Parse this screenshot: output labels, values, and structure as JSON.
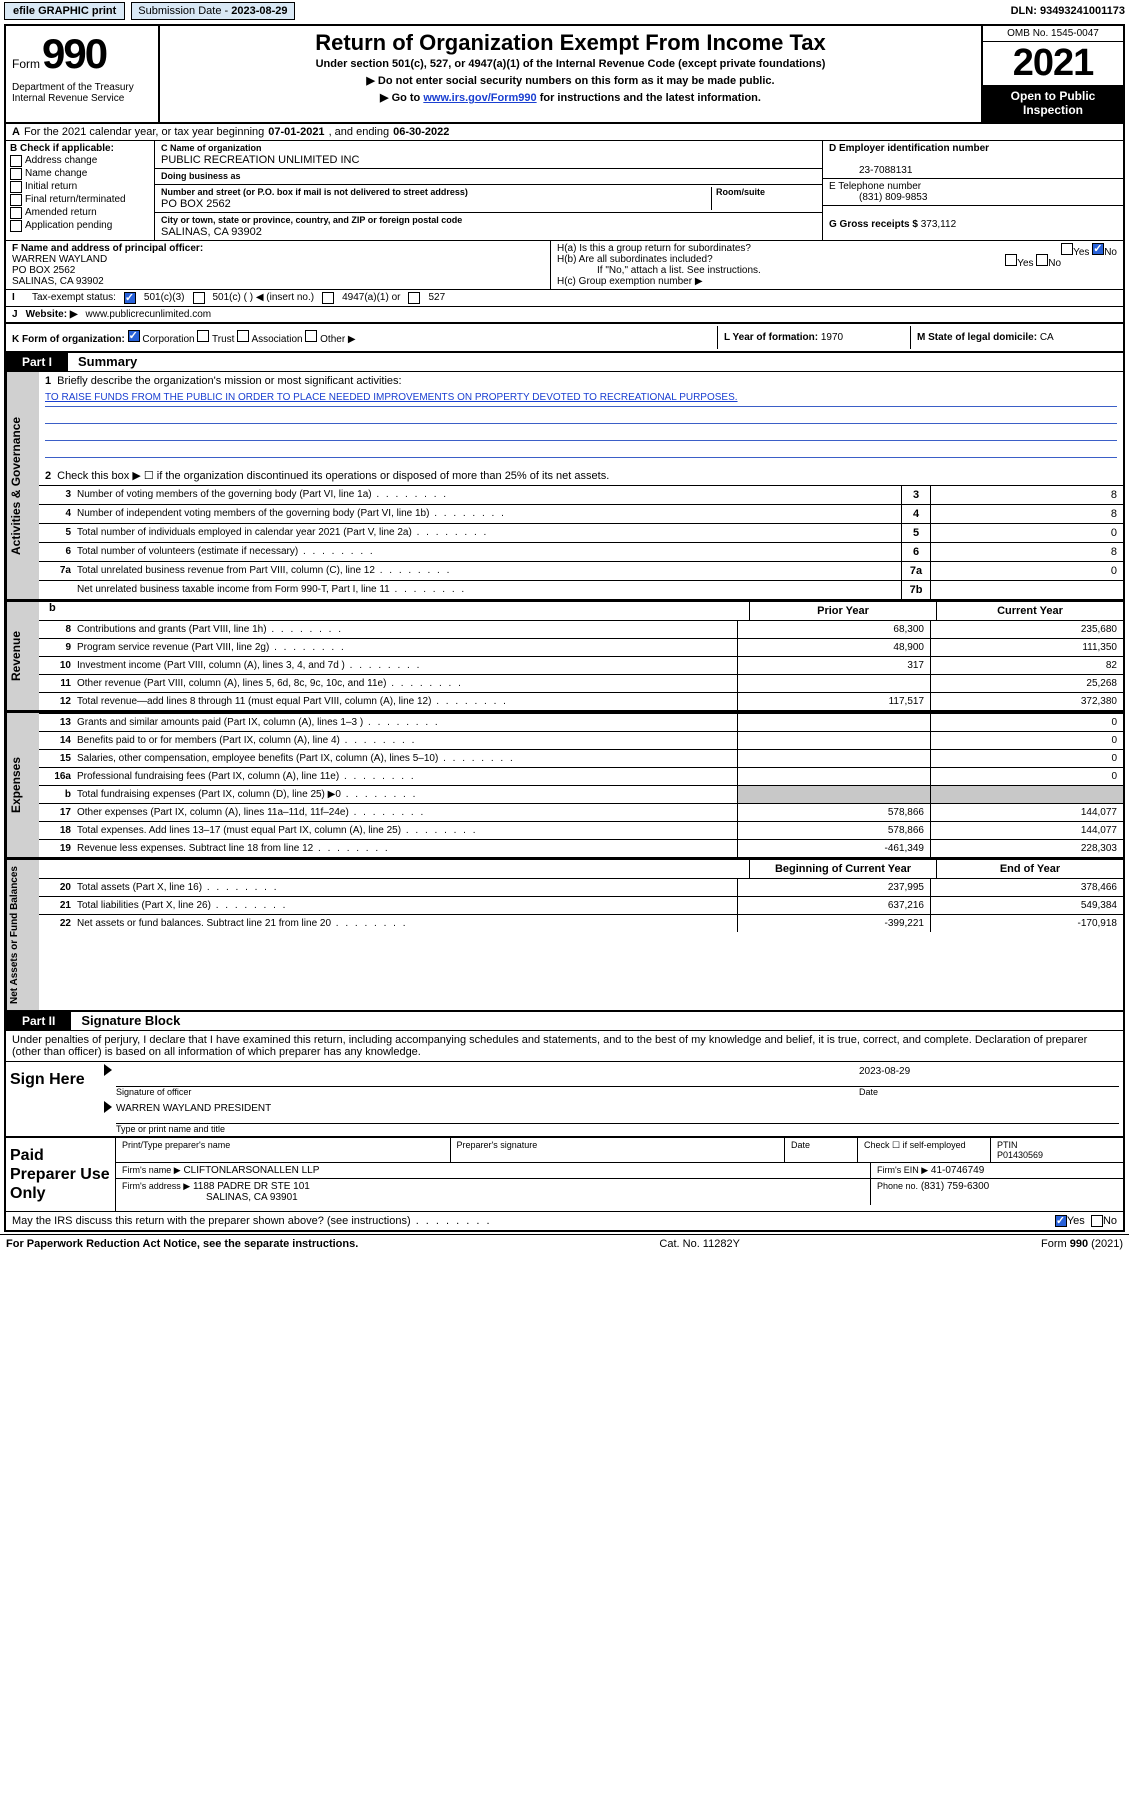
{
  "topbar": {
    "efile": "efile GRAPHIC print",
    "sub_label": "Submission Date",
    "sub_date": "2023-08-29",
    "dln_label": "DLN:",
    "dln": "93493241001173"
  },
  "header": {
    "form_word": "Form",
    "form_num": "990",
    "dept": "Department of the Treasury Internal Revenue Service",
    "title": "Return of Organization Exempt From Income Tax",
    "sub1": "Under section 501(c), 527, or 4947(a)(1) of the Internal Revenue Code (except private foundations)",
    "sub2": "▶ Do not enter social security numbers on this form as it may be made public.",
    "sub3_pre": "▶ Go to ",
    "sub3_link": "www.irs.gov/Form990",
    "sub3_post": " for instructions and the latest information.",
    "omb": "OMB No. 1545-0047",
    "year": "2021",
    "openpub1": "Open to Public",
    "openpub2": "Inspection"
  },
  "row_a": {
    "label_a": "A",
    "text": "For the 2021 calendar year, or tax year beginning ",
    "begin": "07-01-2021",
    "mid": " , and ending ",
    "end": "06-30-2022"
  },
  "section_b": {
    "b_hdr": "B Check if applicable:",
    "checks": [
      "Address change",
      "Name change",
      "Initial return",
      "Final return/terminated",
      "Amended return",
      "Application pending"
    ],
    "c_name_lbl": "C Name of organization",
    "c_name": "PUBLIC RECREATION UNLIMITED INC",
    "dba_lbl": "Doing business as",
    "dba": "",
    "addr_lbl": "Number and street (or P.O. box if mail is not delivered to street address)",
    "room_lbl": "Room/suite",
    "addr": "PO BOX 2562",
    "city_lbl": "City or town, state or province, country, and ZIP or foreign postal code",
    "city": "SALINAS, CA  93902",
    "d_lbl": "D Employer identification number",
    "d_val": "23-7088131",
    "e_lbl": "E Telephone number",
    "e_val": "(831) 809-9853",
    "g_lbl": "G Gross receipts $",
    "g_val": "373,112"
  },
  "row_f": {
    "f_lbl": "F  Name and address of principal officer:",
    "f_name": "WARREN WAYLAND",
    "f_addr1": "PO BOX 2562",
    "f_addr2": "SALINAS, CA  93902",
    "ha": "H(a)  Is this a group return for subordinates?",
    "hb": "H(b)  Are all subordinates included?",
    "hb_note": "If \"No,\" attach a list. See instructions.",
    "hc": "H(c)  Group exemption number ▶",
    "yes": "Yes",
    "no": "No"
  },
  "row_i": {
    "lbl": "I",
    "text": "Tax-exempt status:",
    "opt1": "501(c)(3)",
    "opt2": "501(c) (  ) ◀ (insert no.)",
    "opt3": "4947(a)(1) or",
    "opt4": "527"
  },
  "row_j": {
    "lbl": "J",
    "text": "Website: ▶",
    "val": "www.publicrecunlimited.com"
  },
  "row_k": {
    "lbl": "K Form of organization:",
    "opts": [
      "Corporation",
      "Trust",
      "Association",
      "Other ▶"
    ],
    "l_lbl": "L Year of formation:",
    "l_val": "1970",
    "m_lbl": "M State of legal domicile:",
    "m_val": "CA"
  },
  "part1": {
    "tab": "Part I",
    "title": "Summary",
    "section_ag": "Activities & Governance",
    "q1": "Briefly describe the organization's mission or most significant activities:",
    "mission": "TO RAISE FUNDS FROM THE PUBLIC IN ORDER TO PLACE NEEDED IMPROVEMENTS ON PROPERTY DEVOTED TO RECREATIONAL PURPOSES.",
    "q2": "Check this box ▶ ☐  if the organization discontinued its operations or disposed of more than 25% of its net assets.",
    "rows_ag": [
      {
        "n": "3",
        "label": "Number of voting members of the governing body (Part VI, line 1a)",
        "box": "3",
        "val": "8"
      },
      {
        "n": "4",
        "label": "Number of independent voting members of the governing body (Part VI, line 1b)",
        "box": "4",
        "val": "8"
      },
      {
        "n": "5",
        "label": "Total number of individuals employed in calendar year 2021 (Part V, line 2a)",
        "box": "5",
        "val": "0"
      },
      {
        "n": "6",
        "label": "Total number of volunteers (estimate if necessary)",
        "box": "6",
        "val": "8"
      },
      {
        "n": "7a",
        "label": "Total unrelated business revenue from Part VIII, column (C), line 12",
        "box": "7a",
        "val": "0"
      },
      {
        "n": "",
        "label": "Net unrelated business taxable income from Form 990-T, Part I, line 11",
        "box": "7b",
        "val": ""
      }
    ],
    "hdr_b": "b",
    "prior_hdr": "Prior Year",
    "curr_hdr": "Current Year",
    "section_rev": "Revenue",
    "rows_rev": [
      {
        "n": "8",
        "label": "Contributions and grants (Part VIII, line 1h)",
        "prior": "68,300",
        "curr": "235,680"
      },
      {
        "n": "9",
        "label": "Program service revenue (Part VIII, line 2g)",
        "prior": "48,900",
        "curr": "111,350"
      },
      {
        "n": "10",
        "label": "Investment income (Part VIII, column (A), lines 3, 4, and 7d )",
        "prior": "317",
        "curr": "82"
      },
      {
        "n": "11",
        "label": "Other revenue (Part VIII, column (A), lines 5, 6d, 8c, 9c, 10c, and 11e)",
        "prior": "",
        "curr": "25,268"
      },
      {
        "n": "12",
        "label": "Total revenue—add lines 8 through 11 (must equal Part VIII, column (A), line 12)",
        "prior": "117,517",
        "curr": "372,380"
      }
    ],
    "section_exp": "Expenses",
    "rows_exp": [
      {
        "n": "13",
        "label": "Grants and similar amounts paid (Part IX, column (A), lines 1–3 )",
        "prior": "",
        "curr": "0"
      },
      {
        "n": "14",
        "label": "Benefits paid to or for members (Part IX, column (A), line 4)",
        "prior": "",
        "curr": "0"
      },
      {
        "n": "15",
        "label": "Salaries, other compensation, employee benefits (Part IX, column (A), lines 5–10)",
        "prior": "",
        "curr": "0"
      },
      {
        "n": "16a",
        "label": "Professional fundraising fees (Part IX, column (A), line 11e)",
        "prior": "",
        "curr": "0"
      },
      {
        "n": "b",
        "label": "Total fundraising expenses (Part IX, column (D), line 25) ▶0",
        "prior": "GRAY",
        "curr": "GRAY"
      },
      {
        "n": "17",
        "label": "Other expenses (Part IX, column (A), lines 11a–11d, 11f–24e)",
        "prior": "578,866",
        "curr": "144,077"
      },
      {
        "n": "18",
        "label": "Total expenses. Add lines 13–17 (must equal Part IX, column (A), line 25)",
        "prior": "578,866",
        "curr": "144,077"
      },
      {
        "n": "19",
        "label": "Revenue less expenses. Subtract line 18 from line 12",
        "prior": "-461,349",
        "curr": "228,303"
      }
    ],
    "section_na": "Net Assets or Fund Balances",
    "na_hdr_prior": "Beginning of Current Year",
    "na_hdr_curr": "End of Year",
    "rows_na": [
      {
        "n": "20",
        "label": "Total assets (Part X, line 16)",
        "prior": "237,995",
        "curr": "378,466"
      },
      {
        "n": "21",
        "label": "Total liabilities (Part X, line 26)",
        "prior": "637,216",
        "curr": "549,384"
      },
      {
        "n": "22",
        "label": "Net assets or fund balances. Subtract line 21 from line 20",
        "prior": "-399,221",
        "curr": "-170,918"
      }
    ]
  },
  "part2": {
    "tab": "Part II",
    "title": "Signature Block",
    "decl": "Under penalties of perjury, I declare that I have examined this return, including accompanying schedules and statements, and to the best of my knowledge and belief, it is true, correct, and complete. Declaration of preparer (other than officer) is based on all information of which preparer has any knowledge.",
    "sign_here": "Sign Here",
    "sig_officer": "Signature of officer",
    "sig_date_lbl": "Date",
    "sig_date": "2023-08-29",
    "officer_name": "WARREN WAYLAND  PRESIDENT",
    "type_name": "Type or print name and title",
    "paid": "Paid Preparer Use Only",
    "prep_name_lbl": "Print/Type preparer's name",
    "prep_sig_lbl": "Preparer's signature",
    "date_lbl": "Date",
    "check_lbl": "Check ☐ if self-employed",
    "ptin_lbl": "PTIN",
    "ptin": "P01430569",
    "firm_name_lbl": "Firm's name    ▶",
    "firm_name": "CLIFTONLARSONALLEN LLP",
    "firm_ein_lbl": "Firm's EIN ▶",
    "firm_ein": "41-0746749",
    "firm_addr_lbl": "Firm's address ▶",
    "firm_addr1": "1188 PADRE DR STE 101",
    "firm_addr2": "SALINAS, CA  93901",
    "phone_lbl": "Phone no.",
    "phone": "(831) 759-6300",
    "discuss": "May the IRS discuss this return with the preparer shown above? (see instructions)",
    "yes": "Yes",
    "no": "No"
  },
  "footer": {
    "left": "For Paperwork Reduction Act Notice, see the separate instructions.",
    "mid": "Cat. No. 11282Y",
    "right_pre": "Form ",
    "right_bold": "990",
    "right_post": " (2021)"
  }
}
